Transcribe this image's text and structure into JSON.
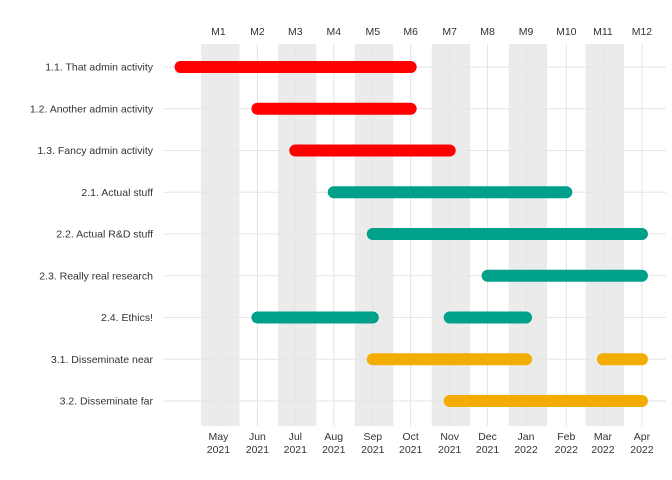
{
  "chart_data": {
    "type": "gantt",
    "title": "",
    "xlabel": "",
    "ylabel": "",
    "grid": true,
    "legend": "none",
    "project_months": [
      "M1",
      "M2",
      "M3",
      "M4",
      "M5",
      "M6",
      "M7",
      "M8",
      "M9",
      "M10",
      "M11",
      "M12"
    ],
    "shaded_months": [
      "M1",
      "M3",
      "M5",
      "M7",
      "M9",
      "M11"
    ],
    "calendar_ticks": [
      {
        "month": "May",
        "year": "2021"
      },
      {
        "month": "Jun",
        "year": "2021"
      },
      {
        "month": "Jul",
        "year": "2021"
      },
      {
        "month": "Aug",
        "year": "2021"
      },
      {
        "month": "Sep",
        "year": "2021"
      },
      {
        "month": "Oct",
        "year": "2021"
      },
      {
        "month": "Nov",
        "year": "2021"
      },
      {
        "month": "Dec",
        "year": "2021"
      },
      {
        "month": "Jan",
        "year": "2022"
      },
      {
        "month": "Feb",
        "year": "2022"
      },
      {
        "month": "Mar",
        "year": "2022"
      },
      {
        "month": "Apr",
        "year": "2022"
      }
    ],
    "x_range": [
      "2021-04-15",
      "2022-05-15"
    ],
    "tasks": [
      {
        "label": "1.1. That admin activity",
        "group": "1",
        "segments": [
          {
            "start": "2021-04-15",
            "end": "2021-10-15"
          }
        ]
      },
      {
        "label": "1.2. Another admin activity",
        "group": "1",
        "segments": [
          {
            "start": "2021-06-15",
            "end": "2021-10-15"
          }
        ]
      },
      {
        "label": "1.3. Fancy admin activity",
        "group": "1",
        "segments": [
          {
            "start": "2021-07-15",
            "end": "2021-11-15"
          }
        ]
      },
      {
        "label": "2.1. Actual stuff",
        "group": "2",
        "segments": [
          {
            "start": "2021-08-15",
            "end": "2022-02-15"
          }
        ]
      },
      {
        "label": "2.2. Actual R&D stuff",
        "group": "2",
        "segments": [
          {
            "start": "2021-09-15",
            "end": "2022-04-15"
          }
        ]
      },
      {
        "label": "2.3. Really real research",
        "group": "2",
        "segments": [
          {
            "start": "2021-12-15",
            "end": "2022-04-15"
          }
        ]
      },
      {
        "label": "2.4. Ethics!",
        "group": "2",
        "segments": [
          {
            "start": "2021-06-15",
            "end": "2021-09-15"
          },
          {
            "start": "2021-11-15",
            "end": "2022-01-15"
          }
        ]
      },
      {
        "label": "3.1. Disseminate near",
        "group": "3",
        "segments": [
          {
            "start": "2021-09-15",
            "end": "2022-01-15"
          },
          {
            "start": "2022-03-15",
            "end": "2022-04-15"
          }
        ]
      },
      {
        "label": "3.2. Disseminate far",
        "group": "3",
        "segments": [
          {
            "start": "2021-11-15",
            "end": "2022-04-15"
          }
        ]
      }
    ],
    "group_colors": {
      "1": "#ff0000",
      "2": "#00a08a",
      "3": "#f2ad00"
    },
    "colors": {
      "shade": "#ebebeb",
      "grid": "#e6e6e6",
      "text": "#333333",
      "background": "#ffffff"
    }
  }
}
